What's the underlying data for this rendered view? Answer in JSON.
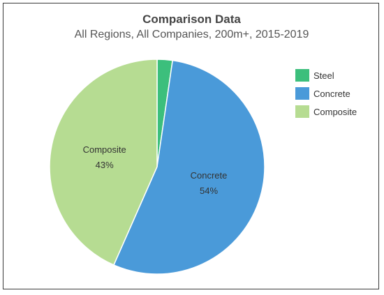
{
  "chart_data": {
    "type": "pie",
    "title": "Comparison Data",
    "subtitle": "All Regions, All Companies, 200m+, 2015-2019",
    "slices": [
      {
        "label": "Steel",
        "value": 2.3,
        "color": "#3cbf7c",
        "data_label": ""
      },
      {
        "label": "Concrete",
        "value": 54.3,
        "color": "#4a9ad9",
        "data_label": "54%"
      },
      {
        "label": "Composite",
        "value": 43.4,
        "color": "#b6dc92",
        "data_label": "43%"
      }
    ],
    "legend": {
      "position": "top-right",
      "entries": [
        "Steel",
        "Concrete",
        "Composite"
      ]
    }
  }
}
